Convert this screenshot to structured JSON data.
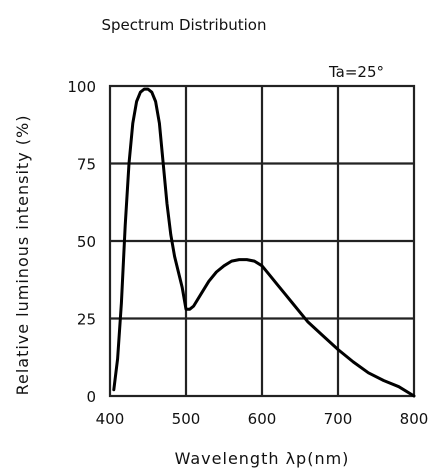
{
  "chart_data": {
    "type": "line",
    "title": "Spectrum Distribution",
    "annotation": "Ta=25°",
    "xlabel": "Wavelength λp(nm)",
    "ylabel": "Relative luminous intensity (%)",
    "xlim": [
      400,
      800
    ],
    "ylim": [
      0,
      100
    ],
    "x_ticks": [
      "400",
      "500",
      "600",
      "700",
      "800"
    ],
    "y_ticks": [
      "0",
      "25",
      "50",
      "75",
      "100"
    ],
    "grid": true,
    "series": [
      {
        "x": [
          405,
          410,
          415,
          420,
          425,
          430,
          435,
          440,
          445,
          450,
          455,
          460,
          465,
          470,
          475,
          480,
          485,
          490,
          495,
          500,
          505,
          510,
          520,
          530,
          540,
          550,
          560,
          570,
          580,
          590,
          600,
          610,
          620,
          630,
          640,
          650,
          660,
          680,
          700,
          720,
          740,
          760,
          780,
          800
        ],
        "y": [
          2,
          12,
          30,
          55,
          75,
          88,
          95,
          98,
          99,
          99,
          98,
          95,
          88,
          75,
          62,
          52,
          45,
          40,
          35,
          28,
          28,
          29,
          33,
          37,
          40,
          42,
          43.5,
          44,
          44,
          43.5,
          42,
          39,
          36,
          33,
          30,
          27,
          24,
          19.5,
          15,
          11,
          7.5,
          5,
          3,
          0
        ]
      }
    ],
    "colors": {
      "line": "#000000",
      "grid": "#222222"
    }
  }
}
